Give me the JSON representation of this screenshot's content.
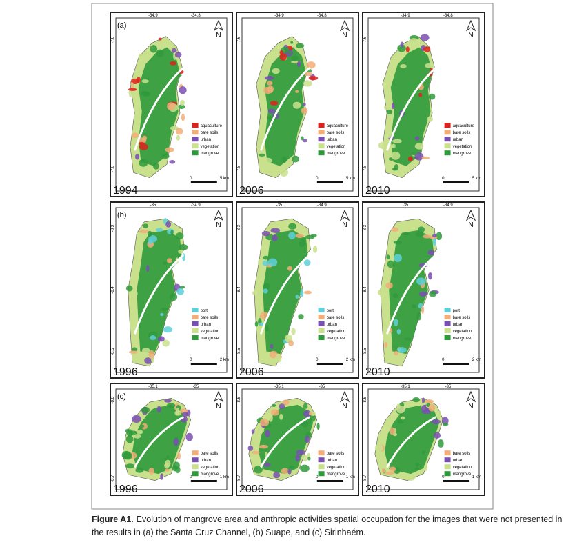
{
  "figure": {
    "north": "N",
    "rows": [
      {
        "label": "(a)",
        "x_ticks": [
          "-34.9",
          "-34.8"
        ],
        "y_ticks": [
          "-7.6",
          "-7.8"
        ],
        "legend": [
          {
            "label": "aquaculture",
            "color": "#e0201c"
          },
          {
            "label": "bare soils",
            "color": "#f2ad78"
          },
          {
            "label": "urban",
            "color": "#7a4fb3"
          },
          {
            "label": "vegetation",
            "color": "#c9e08c"
          },
          {
            "label": "mangrove",
            "color": "#2f9a3c"
          }
        ],
        "scale": [
          "0",
          "5 km"
        ],
        "years": [
          "1994",
          "2006",
          "2010"
        ]
      },
      {
        "label": "(b)",
        "x_ticks": [
          "-35",
          "-34.9"
        ],
        "y_ticks": [
          "-8.3",
          "-8.4",
          "-8.5"
        ],
        "legend": [
          {
            "label": "port",
            "color": "#5fd0da"
          },
          {
            "label": "bare soils",
            "color": "#f2ad78"
          },
          {
            "label": "urban",
            "color": "#7a4fb3"
          },
          {
            "label": "vegetation",
            "color": "#c9e08c"
          },
          {
            "label": "mangrove",
            "color": "#2f9a3c"
          }
        ],
        "scale": [
          "0",
          "2 km"
        ],
        "years": [
          "1996",
          "2006",
          "2010"
        ]
      },
      {
        "label": "(c)",
        "x_ticks": [
          "-35.1",
          "-35"
        ],
        "y_ticks": [
          "-8.6",
          "-8.7"
        ],
        "legend": [
          {
            "label": "bare soils",
            "color": "#f2ad78"
          },
          {
            "label": "urban",
            "color": "#7a4fb3"
          },
          {
            "label": "vegetation",
            "color": "#c9e08c"
          },
          {
            "label": "mangrove",
            "color": "#2f9a3c"
          }
        ],
        "scale": [
          "0",
          "1 km"
        ],
        "years": [
          "1996",
          "2006",
          "2010"
        ]
      }
    ],
    "caption": {
      "label": "Figure A1.",
      "text": "Evolution of mangrove area and anthropic activities spatial occupation for the images that were not presented in the results in (a) the Santa Cruz Channel, (b) Suape, and (c) Sirinhaém."
    }
  }
}
